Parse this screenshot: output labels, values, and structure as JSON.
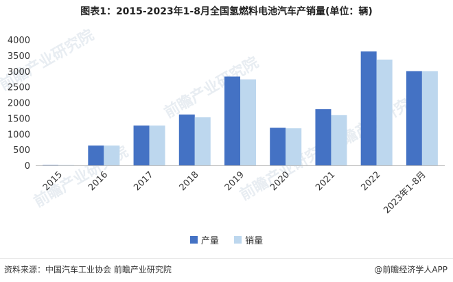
{
  "title": "图表1：2015-2023年1-8月全国氢燃料电池汽车产销量(单位：辆)",
  "watermark": "前瞻产业研究院",
  "footer": {
    "source": "资料来源：中国汽车工业协会 前瞻产业研究院",
    "credit": "@前瞻经济学人APP"
  },
  "chart_data": {
    "type": "bar",
    "title": "图表1：2015-2023年1-8月全国氢燃料电池汽车产销量(单位：辆)",
    "categories": [
      "2015",
      "2016",
      "2017",
      "2018",
      "2019",
      "2020",
      "2021",
      "2022",
      "2023年1-8月"
    ],
    "series": [
      {
        "name": "产量",
        "color": "#4472c4",
        "values": [
          10,
          630,
          1270,
          1620,
          2830,
          1200,
          1790,
          3630,
          3000
        ]
      },
      {
        "name": "销量",
        "color": "#bdd7ee",
        "values": [
          10,
          630,
          1270,
          1530,
          2740,
          1180,
          1600,
          3370,
          3000
        ]
      }
    ],
    "y_ticks": [
      0,
      500,
      1000,
      1500,
      2000,
      2500,
      3000,
      3500,
      4000
    ],
    "ylim": [
      0,
      4000
    ],
    "grid": false,
    "legend_position": "bottom-center"
  }
}
